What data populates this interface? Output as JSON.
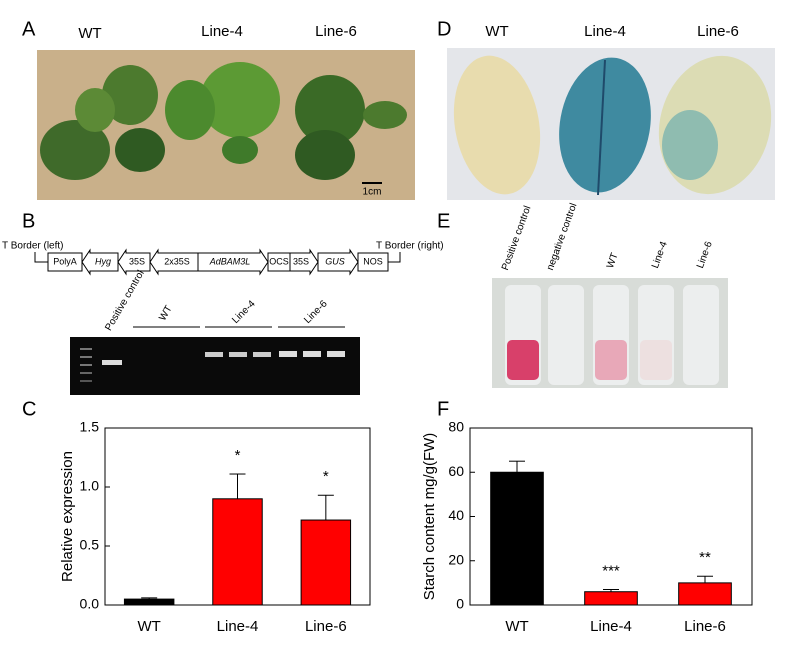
{
  "panels": {
    "A": {
      "letter": "A",
      "labels": [
        "WT",
        "Line-4",
        "Line-6"
      ],
      "scale": "1cm"
    },
    "B": {
      "letter": "B",
      "border_left": "T Border (left)",
      "border_right": "T Border (right)",
      "construct": [
        "PolyA",
        "Hyg",
        "35S",
        "2x35S",
        "AdBAM3L",
        "OCS",
        "35S",
        "GUS",
        "NOS"
      ],
      "gel_labels": [
        "Positive control",
        "WT",
        "Line-4",
        "Line-6"
      ]
    },
    "D": {
      "letter": "D",
      "labels": [
        "WT",
        "Line-4",
        "Line-6"
      ]
    },
    "E": {
      "letter": "E",
      "labels": [
        "Positive control",
        "negative control",
        "WT",
        "Line-4",
        "Line-6"
      ]
    }
  },
  "chart_data": [
    {
      "type": "bar",
      "panel_label": "C",
      "ylabel": "Relative expression",
      "categories": [
        "WT",
        "Line-4",
        "Line-6"
      ],
      "values": [
        0.05,
        0.9,
        0.72
      ],
      "errors": [
        0.01,
        0.21,
        0.21
      ],
      "colors": [
        "#000000",
        "#ff0000",
        "#ff0000"
      ],
      "annotations": [
        null,
        "*",
        "*"
      ],
      "ylim": [
        0,
        1.5
      ],
      "yticks": [
        {
          "value": 0,
          "label": "0.0"
        },
        {
          "value": 0.5,
          "label": "0.5"
        },
        {
          "value": 1,
          "label": "1.0"
        },
        {
          "value": 1.5,
          "label": "1.5"
        }
      ]
    },
    {
      "type": "bar",
      "panel_label": "F",
      "ylabel": "Starch content mg/g(FW)",
      "categories": [
        "WT",
        "Line-4",
        "Line-6"
      ],
      "values": [
        60,
        6,
        10
      ],
      "errors": [
        5,
        1,
        3
      ],
      "colors": [
        "#000000",
        "#ff0000",
        "#ff0000"
      ],
      "annotations": [
        null,
        "***",
        "**"
      ],
      "ylim": [
        0,
        80
      ],
      "yticks": [
        0,
        20,
        40,
        60,
        80
      ]
    }
  ]
}
